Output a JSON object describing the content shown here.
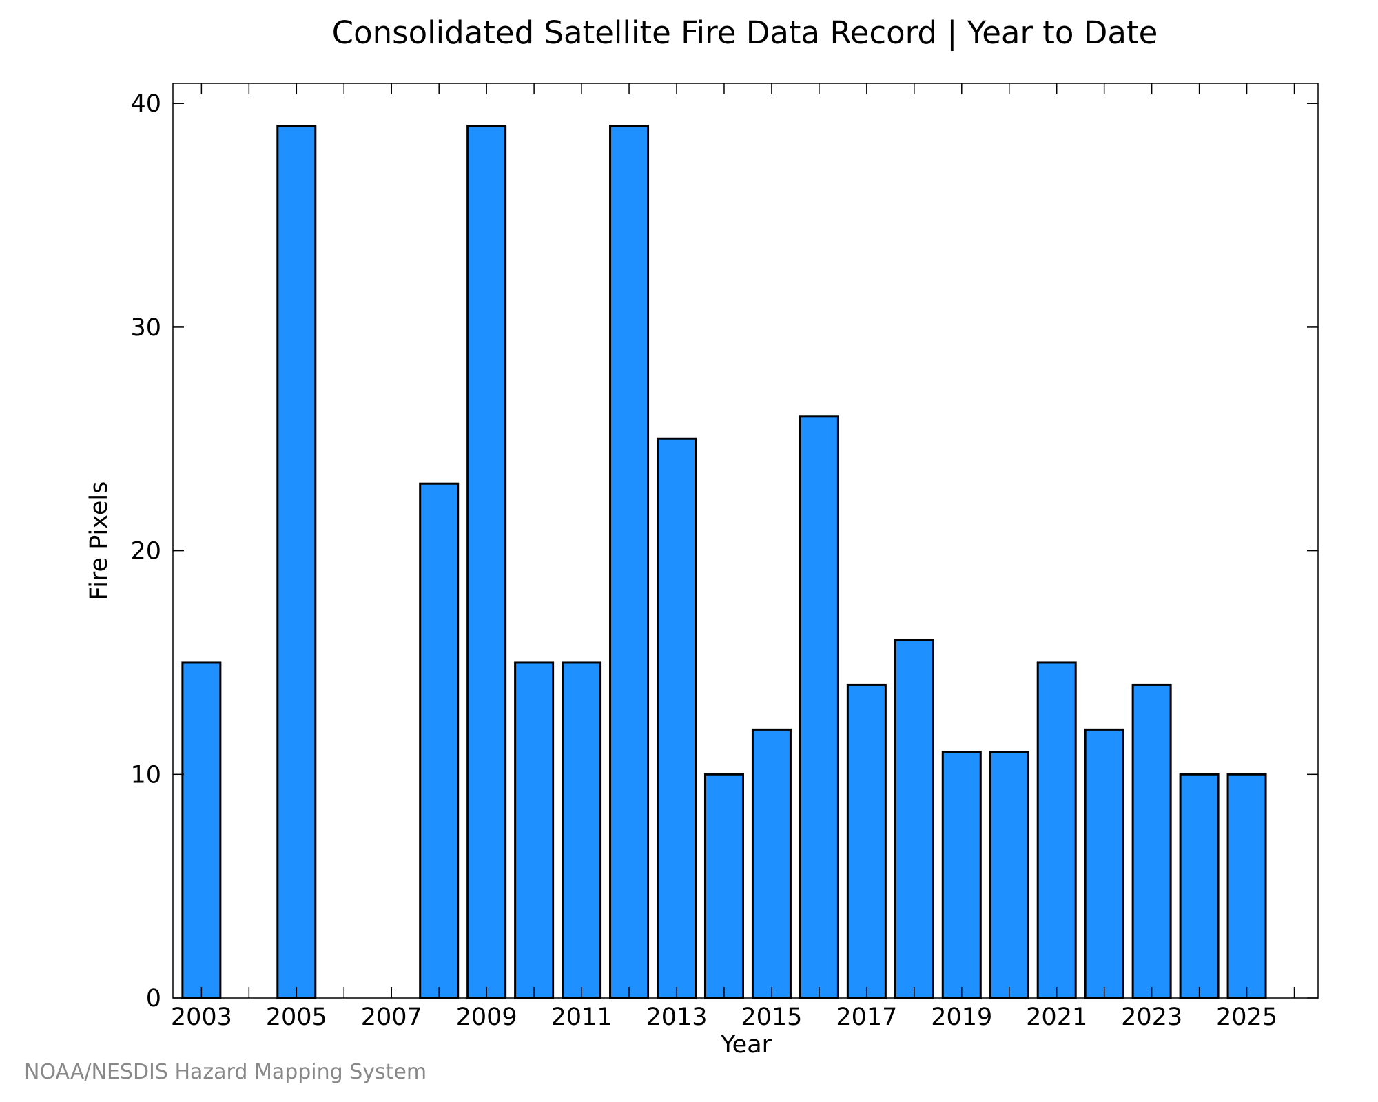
{
  "chart_data": {
    "type": "bar",
    "title": "Consolidated Satellite Fire Data Record | Year to Date",
    "xlabel": "Year",
    "ylabel": "Fire Pixels",
    "categories": [
      "2003",
      "2004",
      "2005",
      "2006",
      "2007",
      "2008",
      "2009",
      "2010",
      "2011",
      "2012",
      "2013",
      "2014",
      "2015",
      "2016",
      "2017",
      "2018",
      "2019",
      "2020",
      "2021",
      "2022",
      "2023",
      "2024",
      "2025"
    ],
    "values": [
      15,
      0,
      39,
      0,
      0,
      23,
      39,
      15,
      15,
      39,
      25,
      10,
      12,
      26,
      14,
      16,
      11,
      11,
      15,
      12,
      14,
      10,
      10
    ],
    "x_tick_labels": [
      "2003",
      "2005",
      "2007",
      "2009",
      "2011",
      "2013",
      "2015",
      "2017",
      "2019",
      "2021",
      "2023",
      "2025"
    ],
    "y_ticks": [
      0,
      10,
      20,
      30,
      40
    ],
    "ylim": [
      0,
      40.9
    ],
    "grid": false,
    "bar_color": "#1e90ff",
    "edge_color": "#000000"
  },
  "credit": "NOAA/NESDIS Hazard Mapping System"
}
